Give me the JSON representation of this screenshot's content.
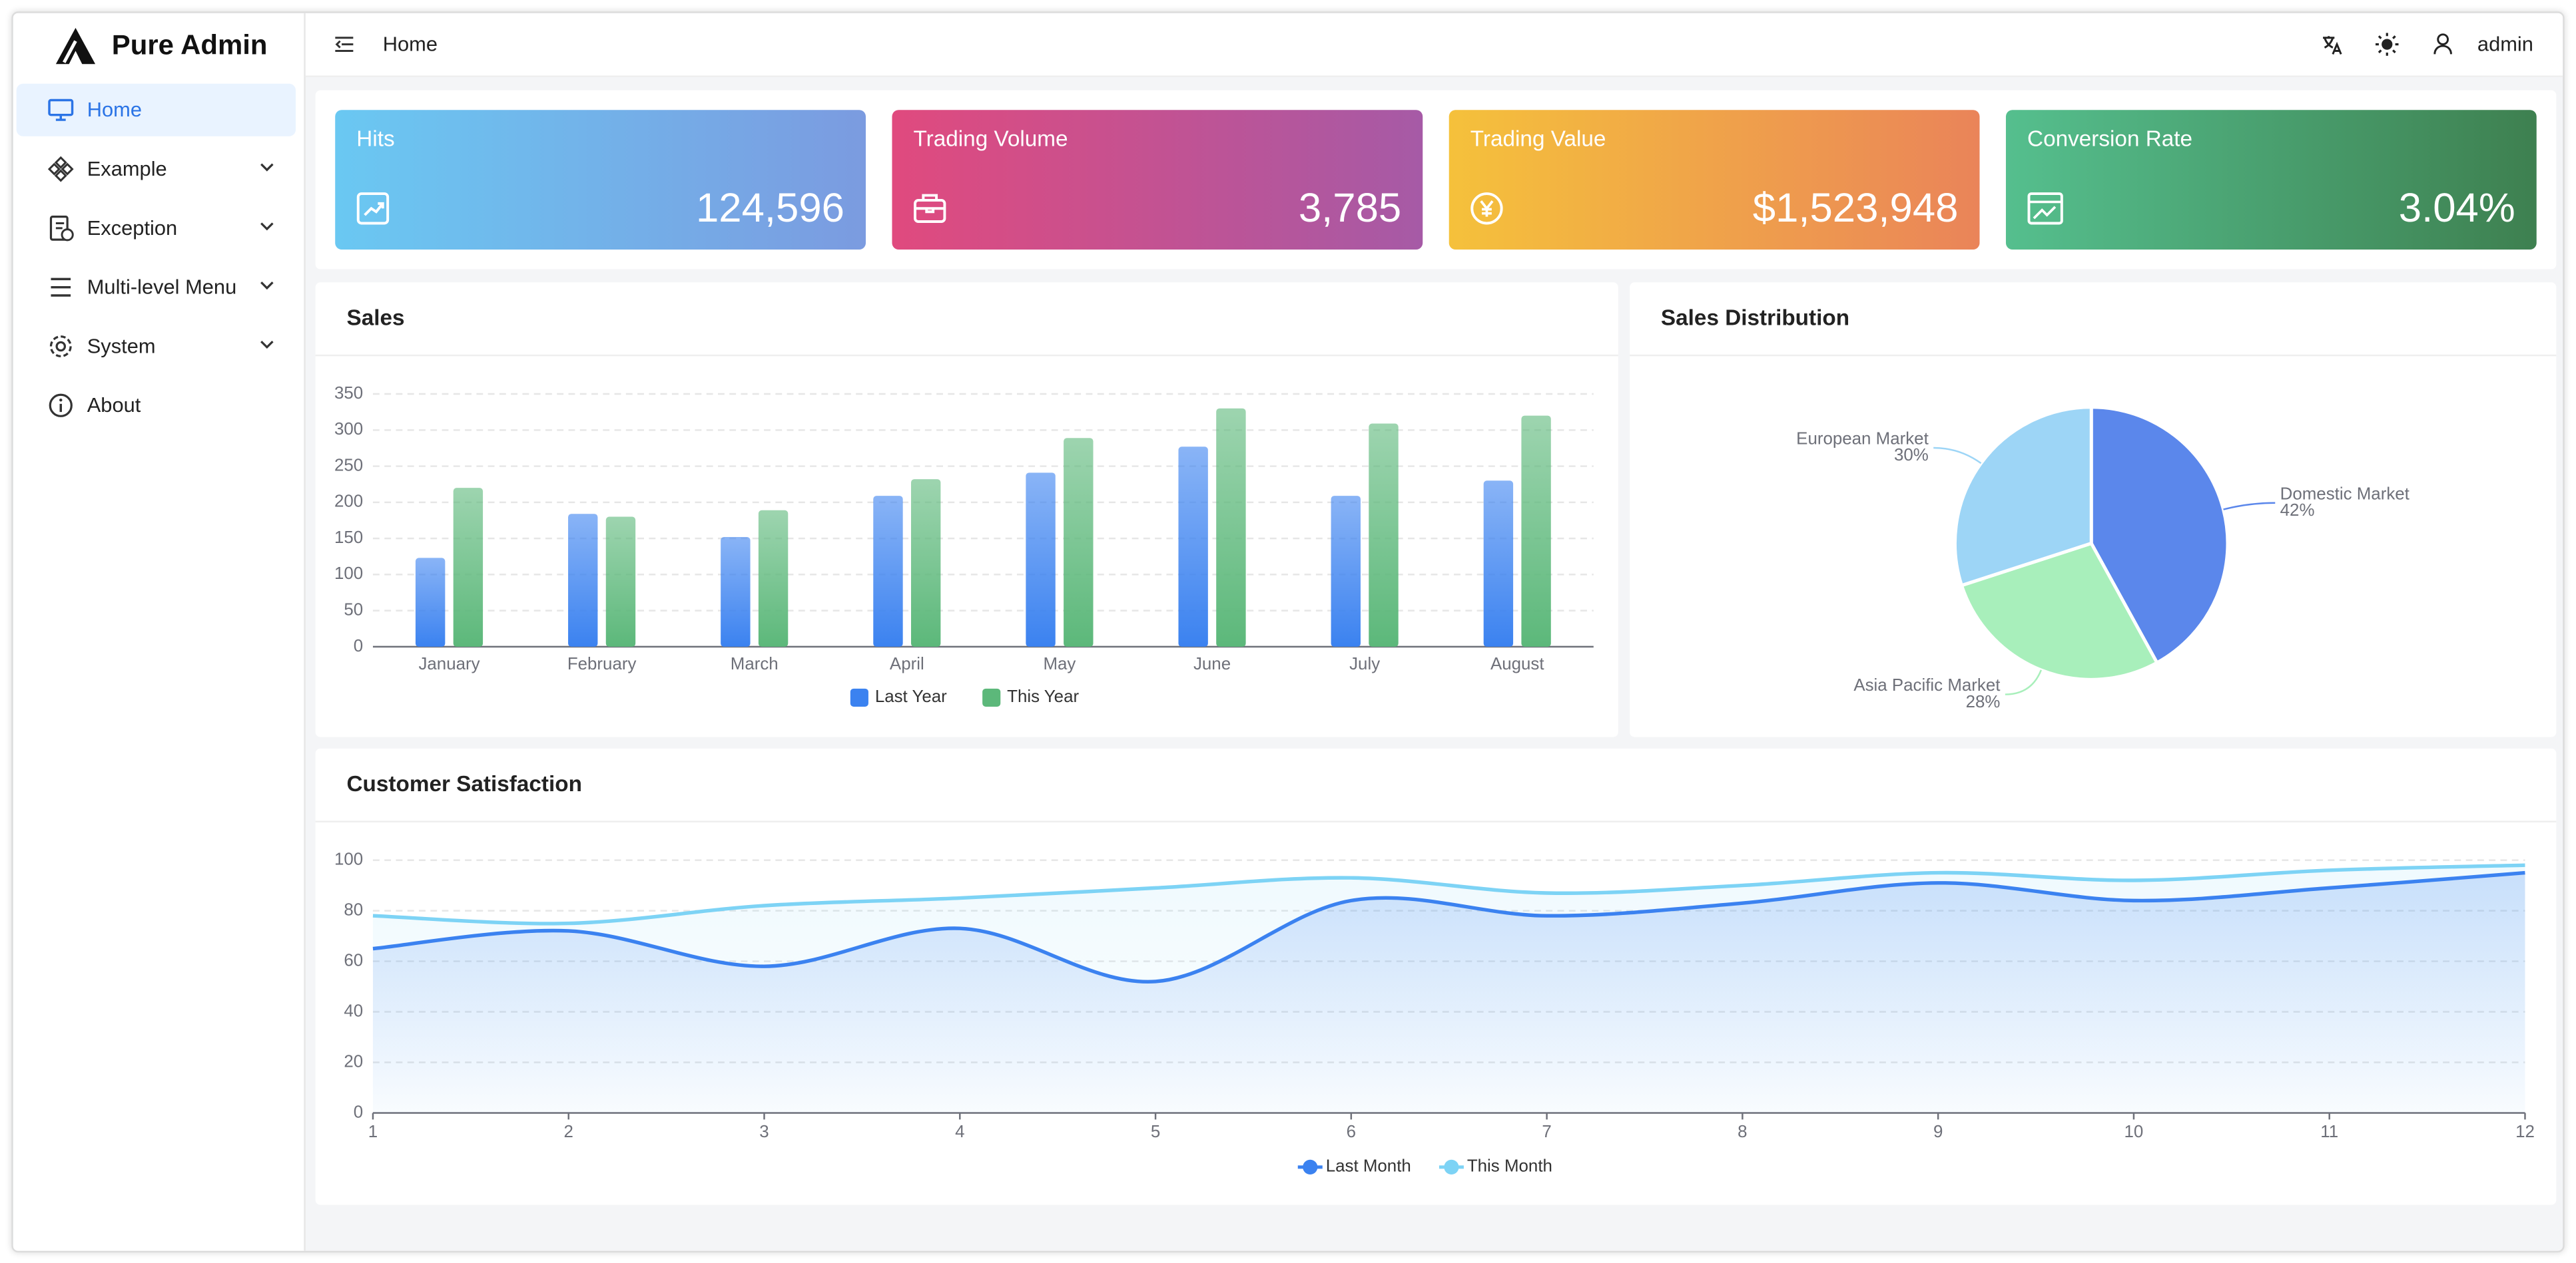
{
  "sidebar": {
    "brand": "Pure Admin",
    "menu": [
      "Home",
      "Example",
      "Exception",
      "Multi-level Menu",
      "System",
      "About"
    ]
  },
  "header": {
    "breadcrumb": "Home",
    "user": "admin"
  },
  "cards": [
    {
      "title": "Hits",
      "value": "124,596"
    },
    {
      "title": "Trading Volume",
      "value": "3,785"
    },
    {
      "title": "Trading Value",
      "value": "$1,523,948"
    },
    {
      "title": "Conversion Rate",
      "value": "3.04%"
    }
  ],
  "sales": {
    "type": "bar",
    "title": "Sales",
    "categories": [
      "January",
      "February",
      "March",
      "April",
      "May",
      "June",
      "July",
      "August"
    ],
    "series": [
      {
        "name": "Last Year",
        "color": "#3b82f0",
        "values": [
          123,
          184,
          152,
          209,
          241,
          277,
          209,
          230
        ]
      },
      {
        "name": "This Year",
        "color": "#5cb87a",
        "values": [
          220,
          180,
          189,
          232,
          289,
          330,
          309,
          320
        ]
      }
    ],
    "ylim": [
      0,
      350
    ],
    "yticks": [
      0,
      50,
      100,
      150,
      200,
      250,
      300,
      350
    ],
    "grid": true
  },
  "distribution": {
    "type": "pie",
    "title": "Sales Distribution",
    "categories": [
      "Domestic Market",
      "Asia Pacific Market",
      "European Market"
    ],
    "values": [
      42,
      28,
      30
    ],
    "value_labels": [
      "42%",
      "28%",
      "30%"
    ],
    "colors": [
      "#5b87eb",
      "#a8efbb",
      "#9dd5f6"
    ]
  },
  "satisfaction": {
    "type": "line",
    "title": "Customer Satisfaction",
    "x": [
      1,
      2,
      3,
      4,
      5,
      6,
      7,
      8,
      9,
      10,
      11,
      12
    ],
    "series": [
      {
        "name": "Last Month",
        "color": "#3b82f0",
        "values": [
          65,
          72,
          58,
          73,
          52,
          84,
          78,
          83,
          91,
          84,
          89,
          95
        ]
      },
      {
        "name": "This Month",
        "color": "#7dd3f5",
        "values": [
          78,
          75,
          82,
          85,
          89,
          93,
          87,
          90,
          95,
          92,
          96,
          98
        ]
      }
    ],
    "xlim": [
      1,
      12
    ],
    "xticks": [
      1,
      2,
      3,
      4,
      5,
      6,
      7,
      8,
      9,
      10,
      11,
      12
    ],
    "ylim": [
      0,
      100
    ],
    "yticks": [
      0,
      20,
      40,
      60,
      80,
      100
    ],
    "grid": true
  }
}
